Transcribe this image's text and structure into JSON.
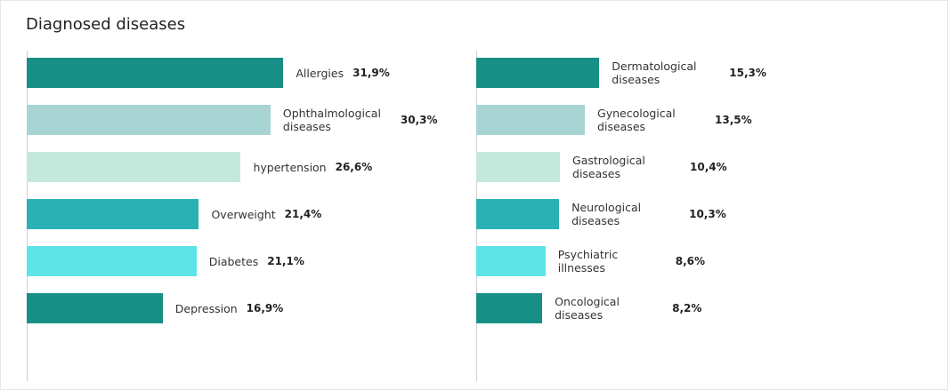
{
  "title": "Diagnosed diseases",
  "chart_data": [
    {
      "type": "hbar",
      "categories": [
        "Allergies",
        "Ophthalmological diseases",
        "hypertension",
        "Overweight",
        "Diabetes",
        "Depression"
      ],
      "values": [
        31.9,
        30.3,
        26.6,
        21.4,
        21.1,
        16.9
      ],
      "value_labels": [
        "31,9%",
        "30,3%",
        "26,6%",
        "21,4%",
        "21,1%",
        "16,9%"
      ],
      "colors": [
        "#178f86",
        "#a8d5d3",
        "#c5e8dd",
        "#2ab1b4",
        "#5ce4e6",
        "#178f86"
      ],
      "xlim": [
        0,
        50
      ]
    },
    {
      "type": "hbar",
      "categories": [
        "Dermatological diseases",
        "Gynecological diseases",
        "Gastrological diseases",
        "Neurological diseases",
        "Psychiatric illnesses",
        "Oncological diseases"
      ],
      "values": [
        15.3,
        13.5,
        10.4,
        10.3,
        8.6,
        8.2
      ],
      "value_labels": [
        "15,3%",
        "13,5%",
        "10,4%",
        "10,3%",
        "8,6%",
        "8,2%"
      ],
      "colors": [
        "#178f86",
        "#a8d5d3",
        "#c5e8dd",
        "#2ab1b4",
        "#5ce4e6",
        "#178f86"
      ],
      "xlim": [
        0,
        50
      ]
    }
  ]
}
